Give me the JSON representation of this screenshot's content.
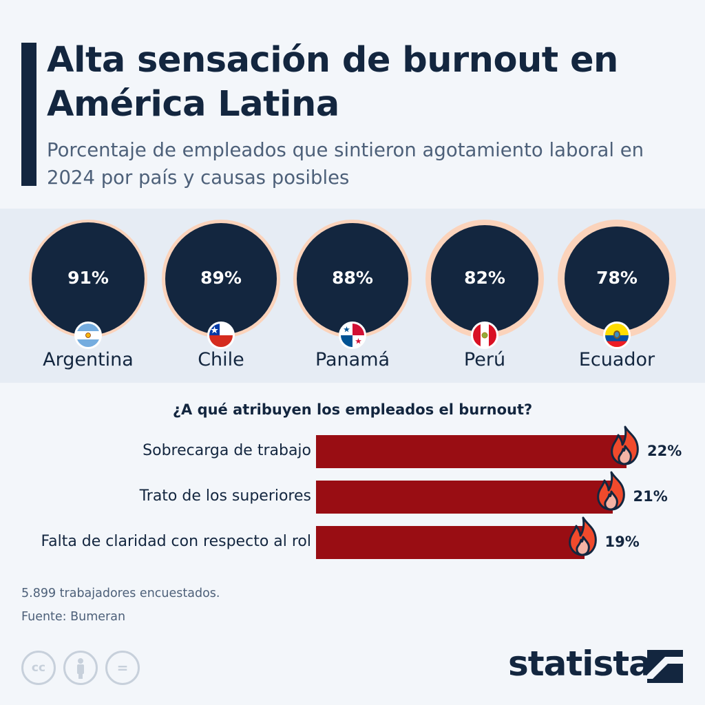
{
  "title": "Alta sensación de burnout en América Latina",
  "subtitle": "Porcentaje de empleados que sintieron agotamiento laboral en 2024 por país y causas posibles",
  "question": "¿A qué atribuyen los empleados el burnout?",
  "footnote": "5.899 trabajadores encuestados.",
  "source": "Fuente: Bumeran",
  "logo": "statista",
  "license_icons": [
    "cc-icon",
    "attribution-icon",
    "no-derivatives-icon"
  ],
  "license_glyphs": [
    "cc",
    "",
    "="
  ],
  "colors": {
    "navy": "#13263f",
    "peach_ring": "#fbd3bb",
    "bar_red": "#990d13",
    "band": "#e6ecf4",
    "background": "#f3f6fa"
  },
  "chart_data": [
    {
      "type": "bubble",
      "categories": [
        "Argentina",
        "Chile",
        "Panamá",
        "Perú",
        "Ecuador"
      ],
      "values": [
        91,
        89,
        88,
        82,
        78
      ],
      "value_labels": [
        "91%",
        "89%",
        "88%",
        "82%",
        "78%"
      ],
      "flag_icons": [
        "argentina-flag-icon",
        "chile-flag-icon",
        "panama-flag-icon",
        "peru-flag-icon",
        "ecuador-flag-icon"
      ],
      "max": 100
    },
    {
      "type": "bar",
      "orientation": "horizontal",
      "title": "¿A qué atribuyen los empleados el burnout?",
      "categories": [
        "Sobrecarga de trabajo",
        "Trato de los superiores",
        "Falta de claridad con respecto al rol"
      ],
      "values": [
        22,
        21,
        19
      ],
      "value_labels": [
        "22%",
        "21%",
        "19%"
      ],
      "marker_icon": "fire-icon"
    }
  ]
}
